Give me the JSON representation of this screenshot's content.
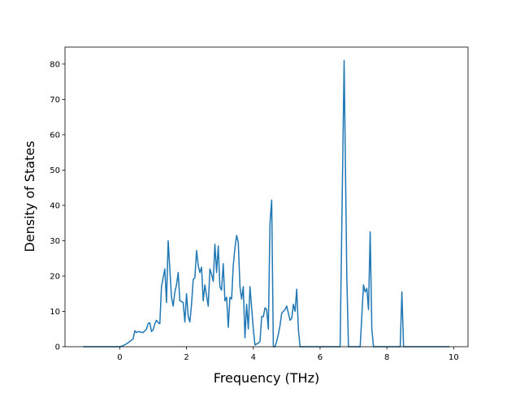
{
  "chart_data": {
    "type": "line",
    "xlabel": "Frequency (THz)",
    "ylabel": "Density of States",
    "xlim": [
      -1.64,
      10.43
    ],
    "ylim": [
      0,
      84.8
    ],
    "xticks": [
      0,
      2,
      4,
      6,
      8,
      10
    ],
    "yticks": [
      0,
      10,
      20,
      30,
      40,
      50,
      60,
      70,
      80
    ],
    "series": [
      {
        "color": "#1f77b4",
        "x": [
          -1.09,
          0,
          0.1,
          0.2,
          0.3,
          0.4,
          0.45,
          0.5,
          0.55,
          0.6,
          0.7,
          0.8,
          0.85,
          0.9,
          0.95,
          1.0,
          1.05,
          1.1,
          1.15,
          1.2,
          1.25,
          1.3,
          1.35,
          1.4,
          1.45,
          1.5,
          1.55,
          1.6,
          1.65,
          1.7,
          1.75,
          1.8,
          1.85,
          1.9,
          1.95,
          2.0,
          2.05,
          2.1,
          2.15,
          2.2,
          2.25,
          2.3,
          2.35,
          2.4,
          2.45,
          2.5,
          2.55,
          2.6,
          2.65,
          2.7,
          2.75,
          2.8,
          2.85,
          2.9,
          2.95,
          3.0,
          3.05,
          3.1,
          3.15,
          3.2,
          3.25,
          3.3,
          3.35,
          3.4,
          3.45,
          3.5,
          3.55,
          3.6,
          3.65,
          3.7,
          3.75,
          3.8,
          3.85,
          3.9,
          3.95,
          4.0,
          4.05,
          4.1,
          4.15,
          4.2,
          4.25,
          4.3,
          4.35,
          4.4,
          4.45,
          4.5,
          4.55,
          4.6,
          4.65,
          4.7,
          4.75,
          4.8,
          4.85,
          4.95,
          5.0,
          5.05,
          5.1,
          5.15,
          5.2,
          5.25,
          5.3,
          5.35,
          5.4,
          5.45,
          5.5,
          5.55,
          5.6,
          6.6,
          6.72,
          6.8,
          6.85,
          7.2,
          7.3,
          7.35,
          7.4,
          7.45,
          7.5,
          7.55,
          7.6,
          8.4,
          8.45,
          8.5,
          9.88
        ],
        "values": [
          0,
          0,
          0.3,
          0.8,
          1.5,
          2.2,
          4.5,
          4,
          4.3,
          4.2,
          4.0,
          5,
          6.5,
          6.8,
          4.3,
          4.8,
          6.5,
          7.5,
          6.8,
          6.5,
          17,
          19.5,
          22,
          12.5,
          30,
          22,
          14,
          11.5,
          15.5,
          17.5,
          21,
          13,
          12.8,
          12.5,
          7,
          15,
          8.5,
          7,
          12,
          19,
          19.5,
          27.2,
          23,
          21,
          22.5,
          13,
          17.5,
          14.5,
          11.5,
          22,
          20.5,
          18.5,
          29,
          21,
          28.5,
          17,
          16,
          23.5,
          13,
          14,
          5.5,
          14,
          13.5,
          23,
          28,
          31.5,
          29.5,
          17,
          13.5,
          17,
          2.5,
          12,
          5,
          17,
          11,
          5,
          0.5,
          0.8,
          1,
          1.5,
          8.5,
          8.5,
          11,
          10.5,
          5,
          35,
          41.5,
          0,
          0,
          1.5,
          3.5,
          6,
          9.5,
          10.5,
          11.5,
          9.5,
          7.5,
          8,
          12,
          10,
          16.3,
          5,
          0,
          0,
          0,
          0,
          0,
          0,
          81,
          20,
          0,
          0,
          17.5,
          15.5,
          16.5,
          10.5,
          32.5,
          5,
          0,
          0,
          15.5,
          0,
          0
        ]
      }
    ]
  }
}
